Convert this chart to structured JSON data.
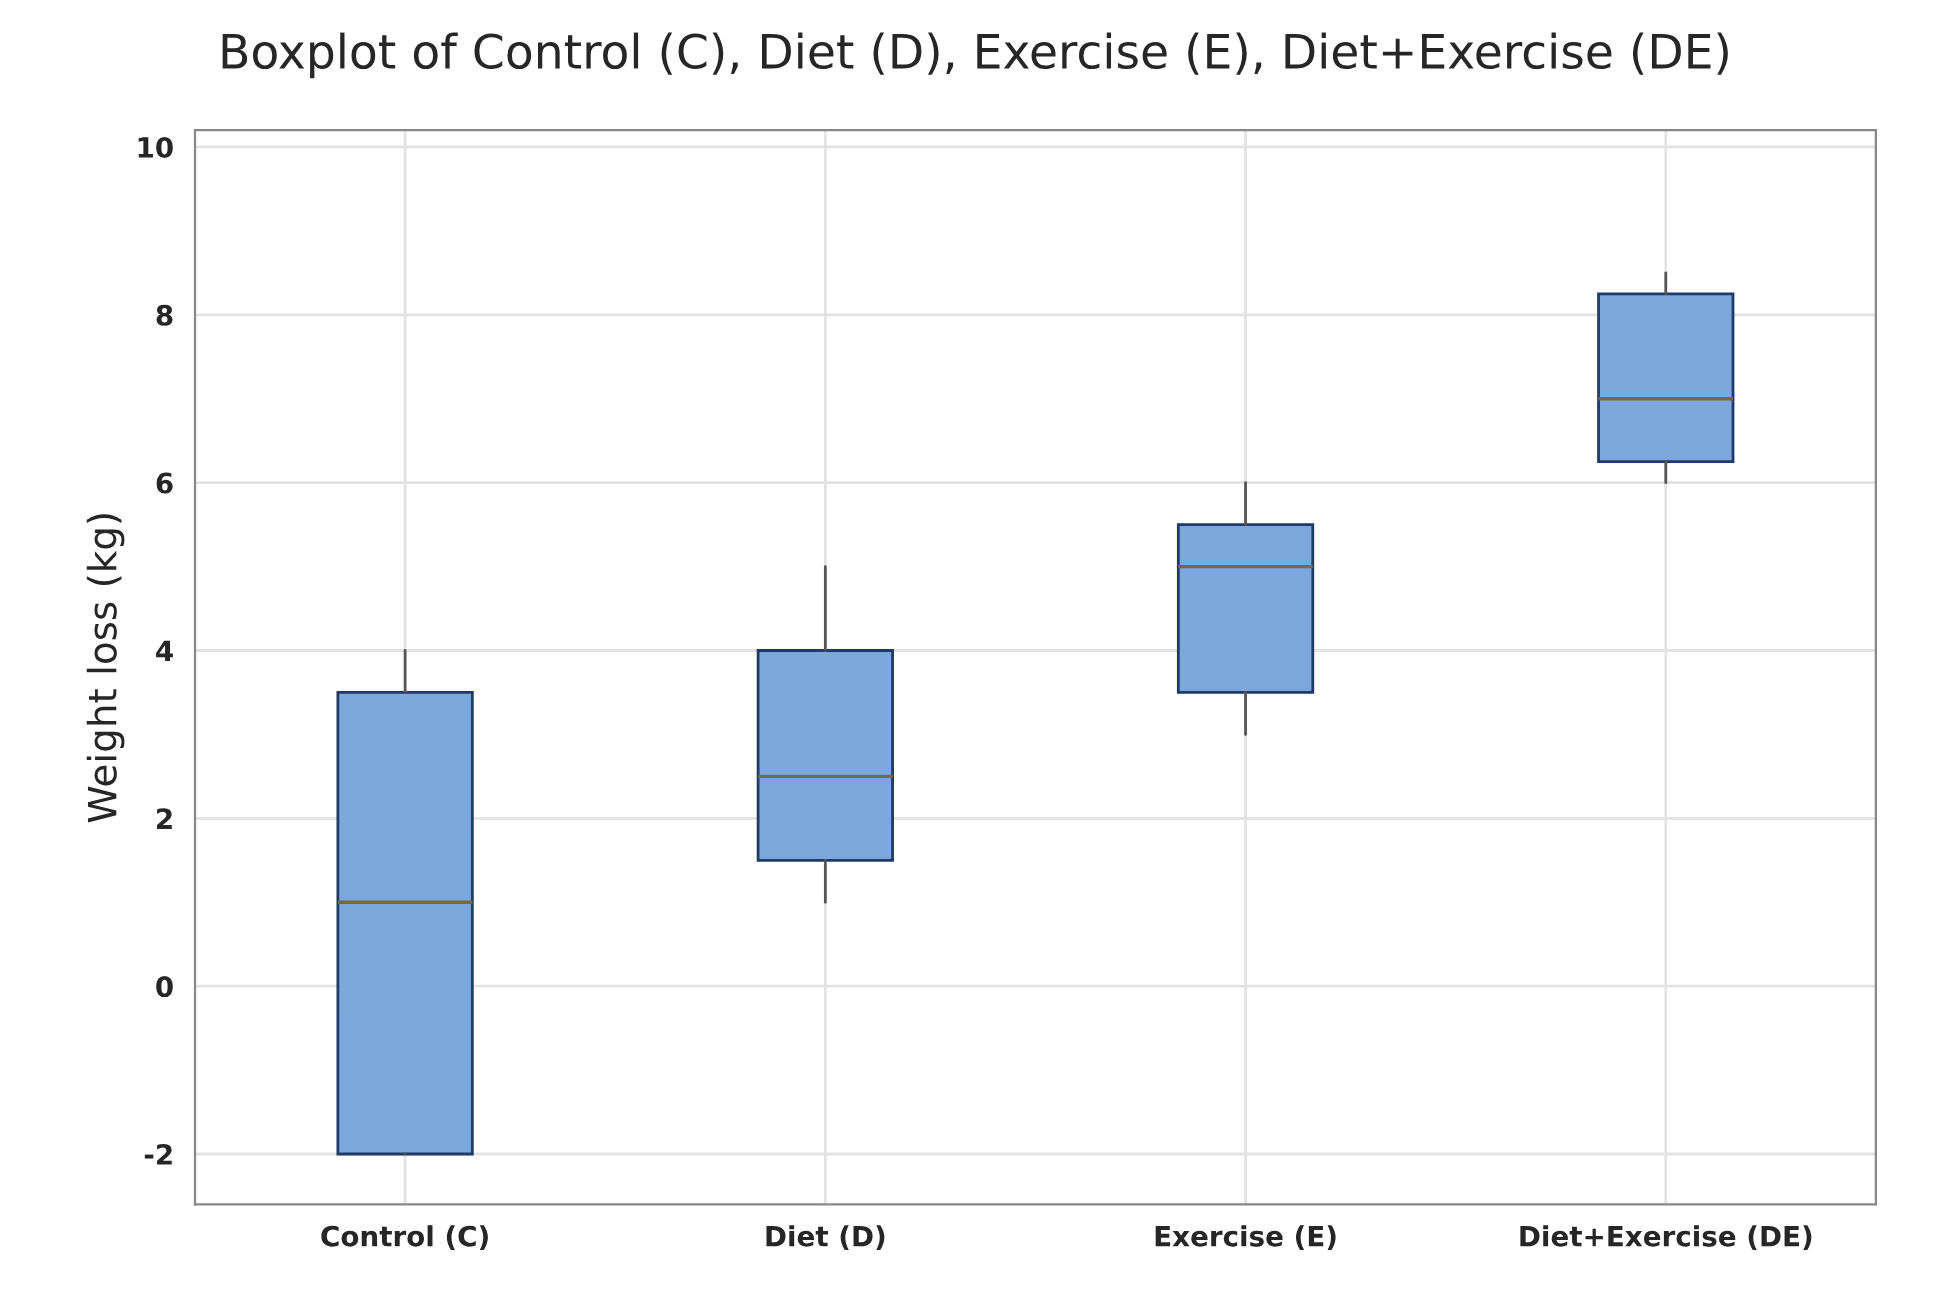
{
  "chart_data": {
    "type": "box",
    "title": "Boxplot of Control (C), Diet (D), Exercise (E), Diet+Exercise (DE)",
    "ylabel": "Weight loss (kg)",
    "categories": [
      "Control (C)",
      "Diet (D)",
      "Exercise (E)",
      "Diet+Exercise (DE)"
    ],
    "boxes": [
      {
        "low": -2,
        "q1": -2,
        "median": 1,
        "q3": 3.5,
        "high": 4
      },
      {
        "low": 1,
        "q1": 1.5,
        "median": 2.5,
        "q3": 4,
        "high": 5
      },
      {
        "low": 3,
        "q1": 3.5,
        "median": 5,
        "q3": 5.5,
        "high": 6
      },
      {
        "low": 6,
        "q1": 6.25,
        "median": 7,
        "q3": 8.25,
        "high": 8.5
      }
    ],
    "color": "#7ba7dc",
    "ylim": [
      -2.6,
      10.2
    ],
    "yticks": [
      {
        "value": -2,
        "label": "-2"
      },
      0,
      2,
      4,
      6,
      8,
      10
    ],
    "grid": true
  }
}
